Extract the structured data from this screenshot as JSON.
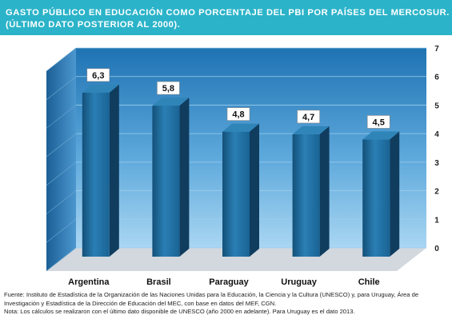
{
  "header": {
    "title_line1": "GASTO PÚBLICO EN EDUCACIÓN COMO PORCENTAJE DEL PBI POR PAÍSES DEL MERCOSUR.",
    "title_line2": "(ÚLTIMO DATO POSTERIOR AL 2000)."
  },
  "chart_data": {
    "type": "bar",
    "categories": [
      "Argentina",
      "Brasil",
      "Paraguay",
      "Uruguay",
      "Chile"
    ],
    "values": [
      6.3,
      5.8,
      4.8,
      4.7,
      4.5
    ],
    "value_labels": [
      "6,3",
      "5,8",
      "4,8",
      "4,7",
      "4,5"
    ],
    "ylim": [
      0,
      7
    ],
    "yticks": [
      "0",
      "1",
      "2",
      "3",
      "4",
      "5",
      "6",
      "7"
    ],
    "y_axis_position": "right",
    "grid": true,
    "legend": "none",
    "colors": {
      "bar_front": "#1d6a9c",
      "bar_side": "#103c5e",
      "bar_top": "#2f84b8",
      "back_wall": "#7bbde6",
      "floor": "#d2d8de"
    }
  },
  "footer": {
    "source_line1": "Fuente: Instituto de Estadística de la Organización de las Naciones Unidas para la Educación, la Ciencia y la Cultura (UNESCO) y, para Uruguay, Área de",
    "source_line2": "Investigación y Estadística de la Dirección de Educación del MEC, con base en datos del MEF, CGN.",
    "note": "Nota: Los cálculos se realizaron con el último dato disponible de UNESCO (año 2000 en adelante). Para Uruguay es el dato 2013."
  }
}
